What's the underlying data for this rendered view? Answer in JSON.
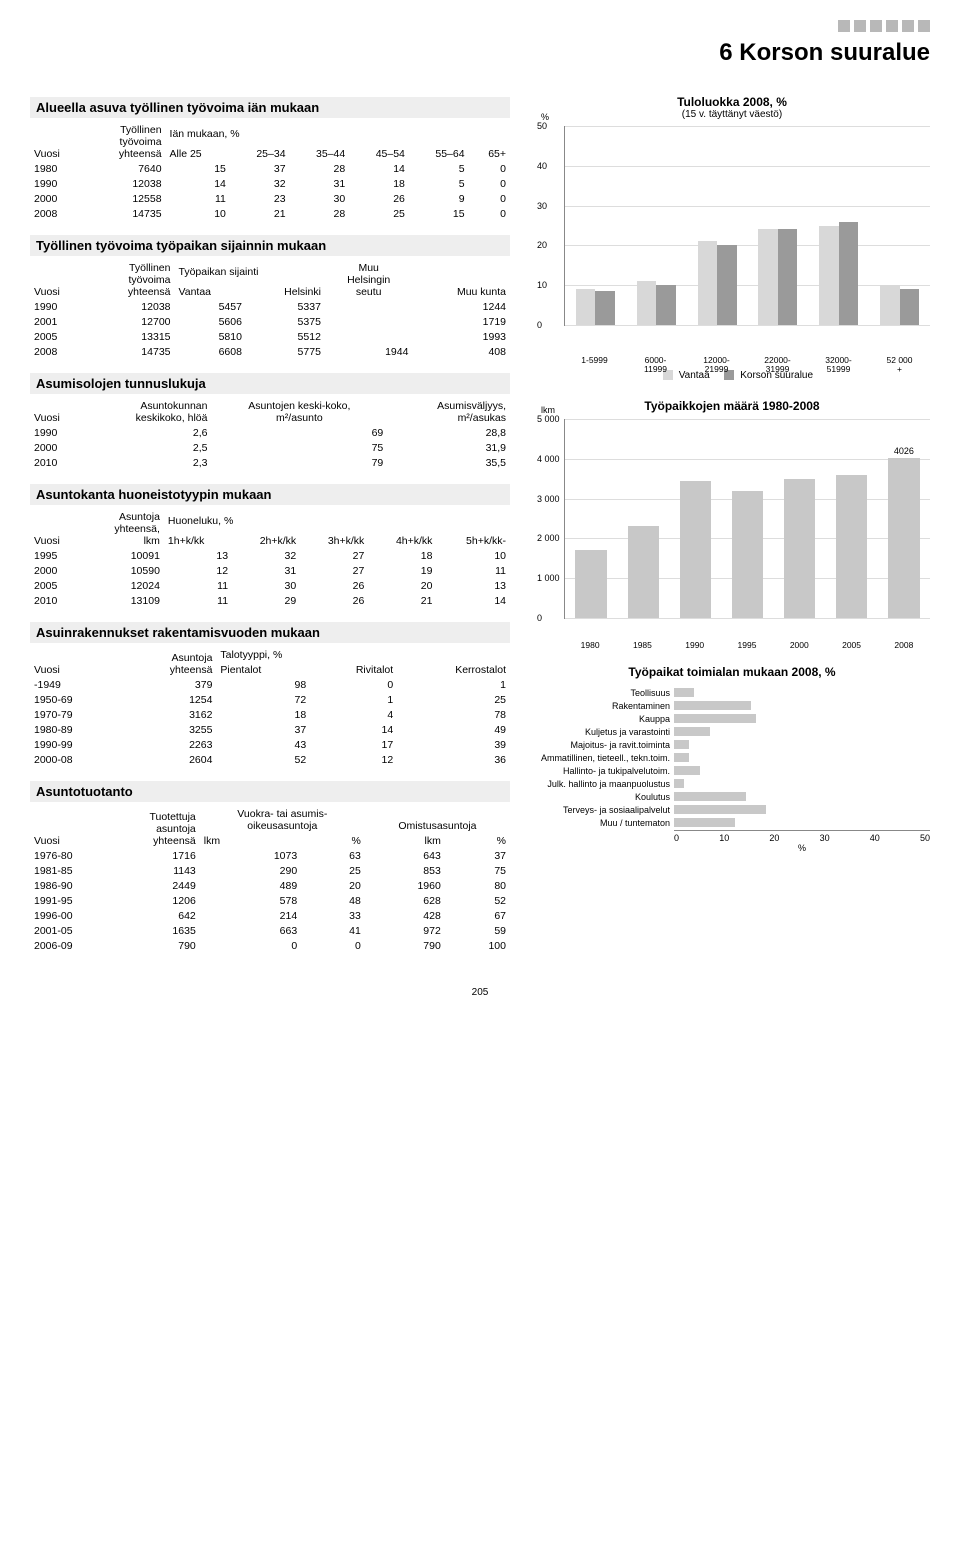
{
  "page": {
    "title": "6 Korson suuralue",
    "number": "205"
  },
  "tbl1": {
    "title": "Alueella asuva työllinen työvoima iän mukaan",
    "headers": {
      "c0": "Vuosi",
      "c1": "Työllinen\ntyövoima\nyhteensä",
      "grp": "Iän mukaan, %",
      "c2": "Alle 25",
      "c3": "25–34",
      "c4": "35–44",
      "c5": "45–54",
      "c6": "55–64",
      "c7": "65+"
    },
    "rows": [
      [
        "1980",
        "7640",
        "15",
        "37",
        "28",
        "14",
        "5",
        "0"
      ],
      [
        "1990",
        "12038",
        "14",
        "32",
        "31",
        "18",
        "5",
        "0"
      ],
      [
        "2000",
        "12558",
        "11",
        "23",
        "30",
        "26",
        "9",
        "0"
      ],
      [
        "2008",
        "14735",
        "10",
        "21",
        "28",
        "25",
        "15",
        "0"
      ]
    ]
  },
  "tbl2": {
    "title": "Työllinen työvoima työpaikan sijainnin mukaan",
    "headers": {
      "c0": "Vuosi",
      "c1": "Työllinen\ntyövoima\nyhteensä",
      "grp": "Työpaikan sijainti",
      "c2": "Vantaa",
      "c3": "Helsinki",
      "c4": "Muu\nHelsingin\nseutu",
      "c5": "Muu kunta"
    },
    "rows": [
      [
        "1990",
        "12038",
        "5457",
        "5337",
        "",
        "1244"
      ],
      [
        "2001",
        "12700",
        "5606",
        "5375",
        "",
        "1719"
      ],
      [
        "2005",
        "13315",
        "5810",
        "5512",
        "",
        "1993"
      ],
      [
        "2008",
        "14735",
        "6608",
        "5775",
        "1944",
        "408"
      ]
    ]
  },
  "tbl3": {
    "title": "Asumisolojen tunnuslukuja",
    "headers": {
      "c0": "Vuosi",
      "c1": "Asuntokunnan\nkeskikoko, hlöä",
      "c2": "Asuntojen keski-koko,\nm²/asunto",
      "c3": "Asumisväljyys,\nm²/asukas"
    },
    "rows": [
      [
        "1990",
        "2,6",
        "69",
        "28,8"
      ],
      [
        "2000",
        "2,5",
        "75",
        "31,9"
      ],
      [
        "2010",
        "2,3",
        "79",
        "35,5"
      ]
    ]
  },
  "tbl4": {
    "title": "Asuntokanta huoneistotyypin mukaan",
    "headers": {
      "c0": "Vuosi",
      "c1": "Asuntoja\nyhteensä,\nlkm",
      "grp": "Huoneluku, %",
      "c2": "1h+k/kk",
      "c3": "2h+k/kk",
      "c4": "3h+k/kk",
      "c5": "4h+k/kk",
      "c6": "5h+k/kk-"
    },
    "rows": [
      [
        "1995",
        "10091",
        "13",
        "32",
        "27",
        "18",
        "10"
      ],
      [
        "2000",
        "10590",
        "12",
        "31",
        "27",
        "19",
        "11"
      ],
      [
        "2005",
        "12024",
        "11",
        "30",
        "26",
        "20",
        "13"
      ],
      [
        "2010",
        "13109",
        "11",
        "29",
        "26",
        "21",
        "14"
      ]
    ]
  },
  "tbl5": {
    "title": "Asuinrakennukset rakentamisvuoden mukaan",
    "headers": {
      "c0": "Vuosi",
      "c1": "Asuntoja\nyhteensä",
      "grp": "Talotyyppi, %",
      "c2": "Pientalot",
      "c3": "Rivitalot",
      "c4": "Kerrostalot"
    },
    "rows": [
      [
        "-1949",
        "379",
        "98",
        "0",
        "1"
      ],
      [
        "1950-69",
        "1254",
        "72",
        "1",
        "25"
      ],
      [
        "1970-79",
        "3162",
        "18",
        "4",
        "78"
      ],
      [
        "1980-89",
        "3255",
        "37",
        "14",
        "49"
      ],
      [
        "1990-99",
        "2263",
        "43",
        "17",
        "39"
      ],
      [
        "2000-08",
        "2604",
        "52",
        "12",
        "36"
      ]
    ]
  },
  "tbl6": {
    "title": "Asuntotuotanto",
    "headers": {
      "c0": "Vuosi",
      "c1": "Tuotettuja\nasuntoja\nyhteensä",
      "grpA": "Vuokra- tai asumis-\noikeusasuntoja",
      "grpB": "Omistusasuntoja",
      "c2": "lkm",
      "c3": "%",
      "c4": "lkm",
      "c5": "%"
    },
    "rows": [
      [
        "1976-80",
        "1716",
        "1073",
        "63",
        "643",
        "37"
      ],
      [
        "1981-85",
        "1143",
        "290",
        "25",
        "853",
        "75"
      ],
      [
        "1986-90",
        "2449",
        "489",
        "20",
        "1960",
        "80"
      ],
      [
        "1991-95",
        "1206",
        "578",
        "48",
        "628",
        "52"
      ],
      [
        "1996-00",
        "642",
        "214",
        "33",
        "428",
        "67"
      ],
      [
        "2001-05",
        "1635",
        "663",
        "41",
        "972",
        "59"
      ],
      [
        "2006-09",
        "790",
        "0",
        "0",
        "790",
        "100"
      ]
    ]
  },
  "chart1": {
    "title": "Tuloluokka 2008, %",
    "subtitle": "(15 v. täyttänyt väestö)",
    "ylabel": "%",
    "ymax": 50,
    "ytick_step": 10,
    "categories": [
      "1-5999",
      "6000-\n11999",
      "12000-\n21999",
      "22000-\n31999",
      "32000-\n51999",
      "52 000\n+"
    ],
    "series": [
      {
        "name": "Vantaa",
        "color": "#d8d8d8",
        "values": [
          9,
          11,
          21,
          24,
          25,
          10
        ]
      },
      {
        "name": "Korson suuralue",
        "color": "#9a9a9a",
        "values": [
          8.5,
          10,
          20,
          24,
          26,
          9
        ]
      }
    ],
    "legend": [
      "Vantaa",
      "Korson suuralue"
    ]
  },
  "chart2": {
    "title": "Työpaikkojen määrä 1980-2008",
    "ylabel": "lkm",
    "ymax": 5000,
    "ytick_step": 1000,
    "color": "#c8c8c8",
    "categories": [
      "1980",
      "1985",
      "1990",
      "1995",
      "2000",
      "2005",
      "2008"
    ],
    "values": [
      1700,
      2300,
      3450,
      3200,
      3500,
      3600,
      4026
    ],
    "value_label": "4026"
  },
  "chart3": {
    "title": "Työpaikat toimialan mukaan 2008, %",
    "xmax": 50,
    "xtick_step": 10,
    "xlabel": "%",
    "color": "#c8c8c8",
    "items": [
      {
        "label": "Teollisuus",
        "value": 4
      },
      {
        "label": "Rakentaminen",
        "value": 15
      },
      {
        "label": "Kauppa",
        "value": 16
      },
      {
        "label": "Kuljetus ja varastointi",
        "value": 7
      },
      {
        "label": "Majoitus- ja ravit.toiminta",
        "value": 3
      },
      {
        "label": "Ammatillinen, tieteell., tekn.toim.",
        "value": 3
      },
      {
        "label": "Hallinto- ja tukipalvelutoim.",
        "value": 5
      },
      {
        "label": "Julk. hallinto ja maanpuolustus",
        "value": 2
      },
      {
        "label": "Koulutus",
        "value": 14
      },
      {
        "label": "Terveys- ja sosiaalipalvelut",
        "value": 18
      },
      {
        "label": "Muu / tuntematon",
        "value": 12
      }
    ]
  }
}
